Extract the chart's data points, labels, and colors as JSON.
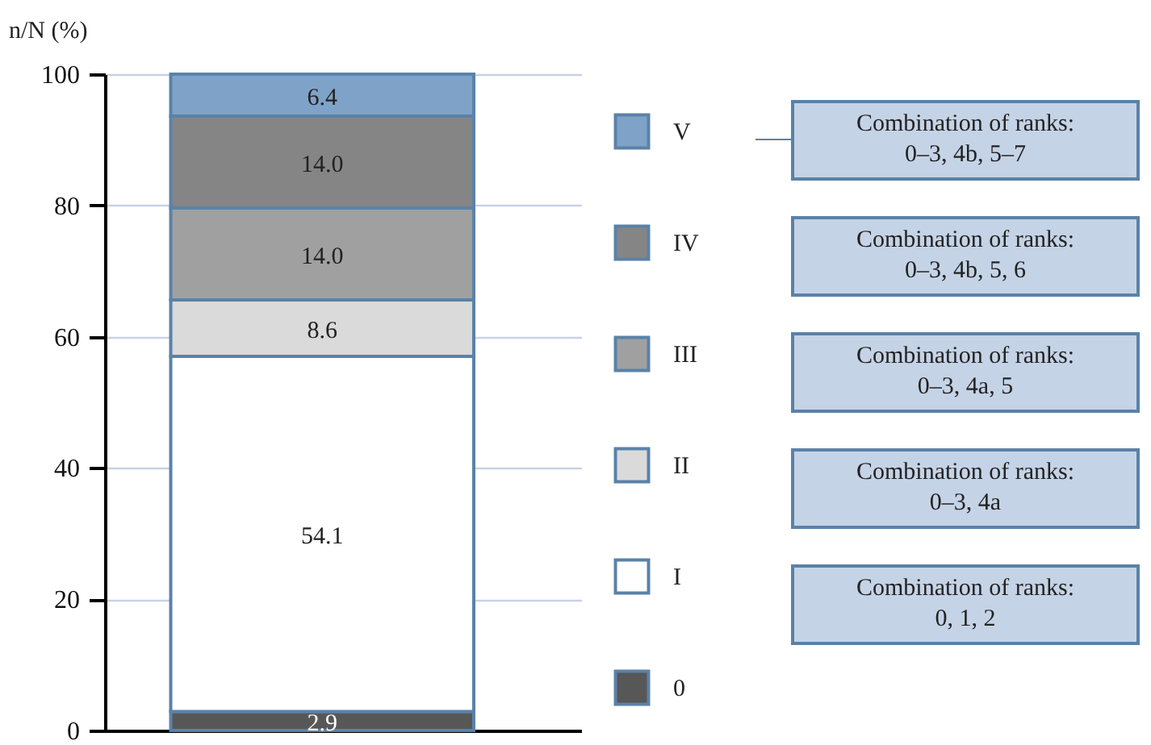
{
  "chart_data": {
    "type": "bar",
    "stacked": true,
    "ylabel": "n/N (%)",
    "categories": [
      null
    ],
    "series": [
      {
        "name": "0",
        "color": "#575757",
        "values": [
          2.9
        ],
        "value_labels": [
          "2.9"
        ]
      },
      {
        "name": "I",
        "color": "#ffffff",
        "values": [
          54.1
        ],
        "value_labels": [
          "54.1"
        ]
      },
      {
        "name": "II",
        "color": "#dadada",
        "values": [
          8.6
        ],
        "value_labels": [
          "8.6"
        ]
      },
      {
        "name": "III",
        "color": "#a0a0a0",
        "values": [
          14
        ],
        "value_labels": [
          "14.0"
        ]
      },
      {
        "name": "IV",
        "color": "#858585",
        "values": [
          14
        ],
        "value_labels": [
          "14.0"
        ]
      },
      {
        "name": "V",
        "color": "#7fa3c8",
        "values": [
          6.4
        ],
        "value_labels": [
          "6.4"
        ]
      }
    ],
    "ylim": [
      0,
      100
    ],
    "yticks": [
      0,
      20,
      40,
      60,
      80,
      100
    ],
    "grid": "y",
    "legend": "right",
    "tick_labels": "y",
    "annotations": [
      "Combination of ranks:\n0–3, 4b, 5–7",
      "Combination of ranks:\n0–3, 4b, 5, 6",
      "Combination of ranks:\n0–3, 4a, 5",
      "Combination of ranks:\n0–3, 4a",
      "Combination of ranks:\n0, 1, 2"
    ]
  }
}
